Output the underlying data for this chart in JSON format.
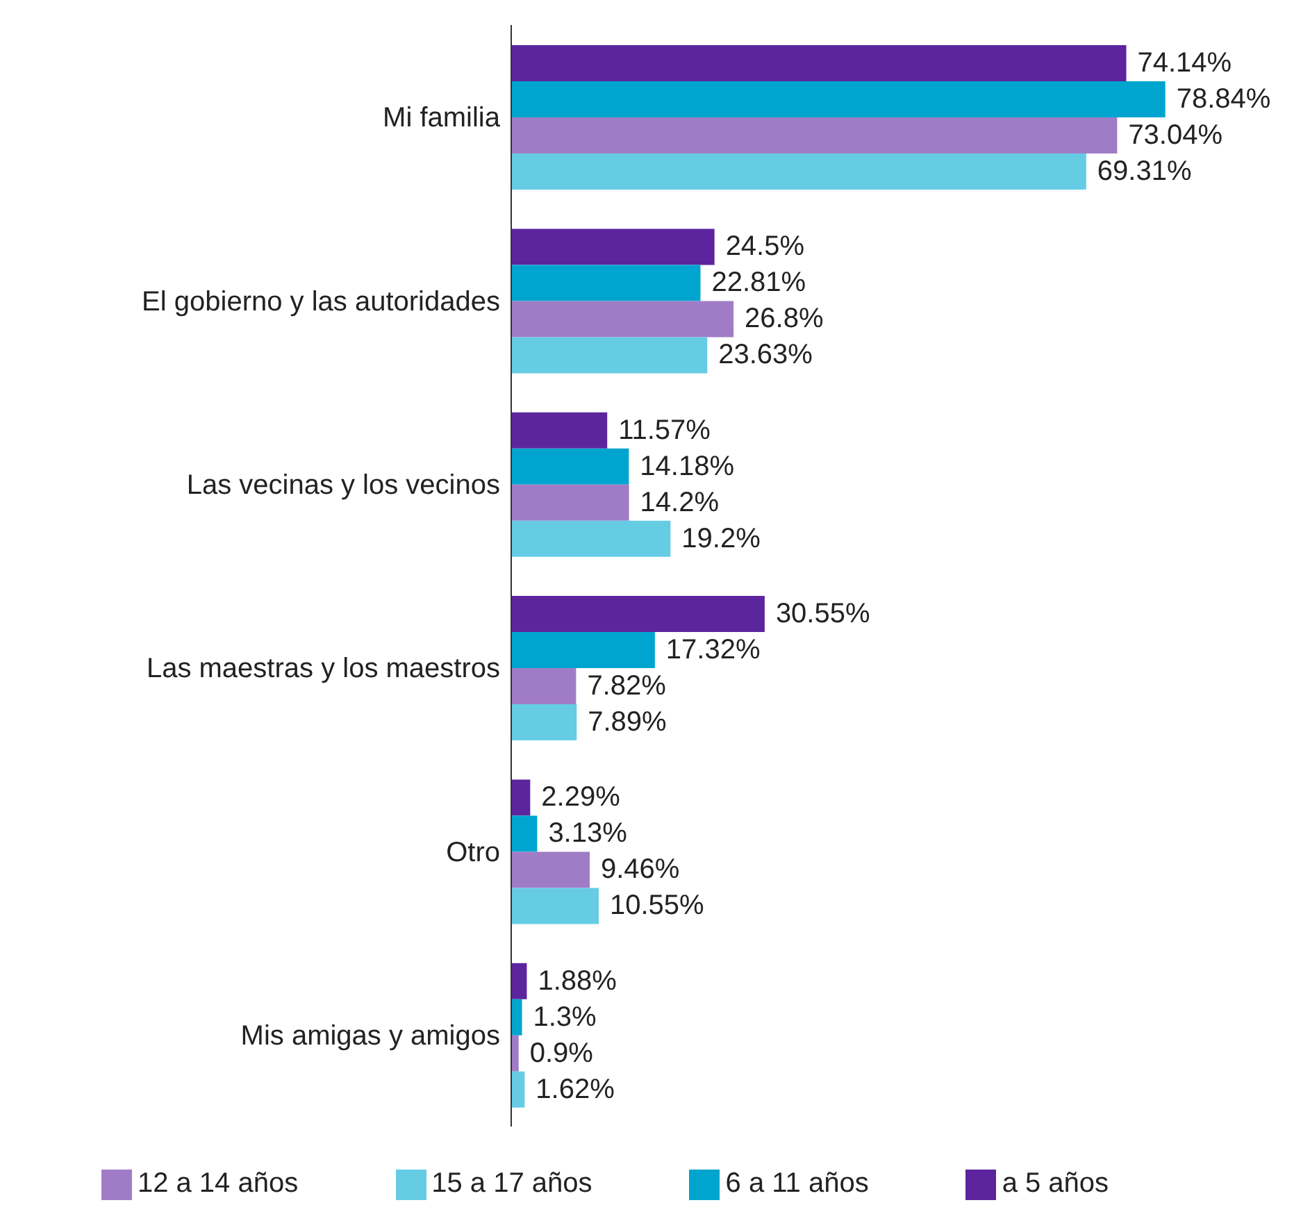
{
  "chart_data": {
    "type": "bar",
    "orientation": "horizontal",
    "categories": [
      "Mi familia",
      "El gobierno y las autoridades",
      "Las vecinas y los vecinos",
      "Las maestras y los maestros",
      "Otro",
      "Mis amigas y amigos"
    ],
    "series": [
      {
        "name": "a 5 años",
        "color": "#5c259e",
        "values": [
          74.14,
          24.5,
          11.57,
          30.55,
          2.29,
          1.88
        ],
        "value_labels": [
          "74.14%",
          "24.5%",
          "11.57%",
          "30.55%",
          "2.29%",
          "1.88%"
        ]
      },
      {
        "name": "6 a 11 años",
        "color": "#00a5cf",
        "values": [
          78.84,
          22.81,
          14.18,
          17.32,
          3.13,
          1.3
        ],
        "value_labels": [
          "78.84%",
          "22.81%",
          "14.18%",
          "17.32%",
          "3.13%",
          "1.3%"
        ]
      },
      {
        "name": "12 a 14 años",
        "color": "#a07cc6",
        "values": [
          73.04,
          26.8,
          14.2,
          7.82,
          9.46,
          0.9
        ],
        "value_labels": [
          "73.04%",
          "26.8%",
          "14.2%",
          "7.82%",
          "9.46%",
          "0.9%"
        ]
      },
      {
        "name": "15 a 17 años",
        "color": "#66cce4",
        "values": [
          69.31,
          23.63,
          19.2,
          7.89,
          10.55,
          1.62
        ],
        "value_labels": [
          "69.31%",
          "23.63%",
          "19.2%",
          "7.89%",
          "10.55%",
          "1.62%"
        ]
      }
    ],
    "legend": "bottom",
    "grid": false
  }
}
